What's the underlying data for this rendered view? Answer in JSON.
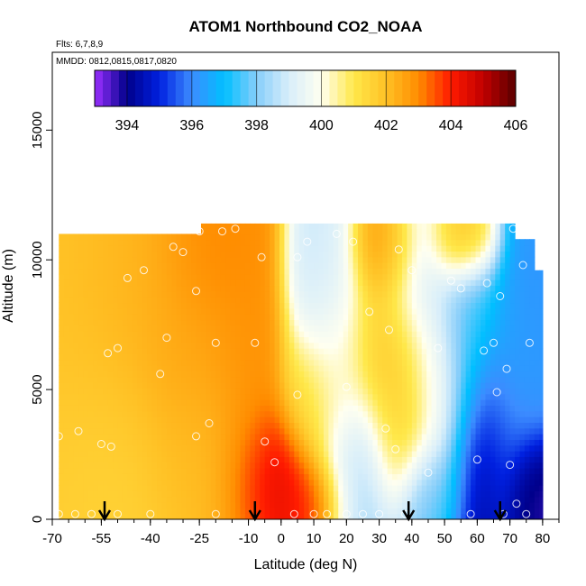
{
  "chart_data": {
    "type": "heatmap",
    "title": "ATOM1 Northbound CO2_NOAA",
    "subtitle_flights": "Flts: 6,7,8,9",
    "subtitle_dates": "MMDD: 0812,0815,0817,0820",
    "xlabel": "Latitude (deg N)",
    "ylabel": "Altitude (m)",
    "xlim": [
      -70,
      85
    ],
    "ylim": [
      0,
      18000
    ],
    "x_ticks": [
      {
        "value": -70,
        "label": "-70"
      },
      {
        "value": -55,
        "label": "-55"
      },
      {
        "value": -40,
        "label": "-40"
      },
      {
        "value": -25,
        "label": "-25"
      },
      {
        "value": -10,
        "label": "-10"
      },
      {
        "value": 0,
        "label": "0"
      },
      {
        "value": 10,
        "label": "10"
      },
      {
        "value": 20,
        "label": "20"
      },
      {
        "value": 30,
        "label": "30"
      },
      {
        "value": 40,
        "label": "40"
      },
      {
        "value": 50,
        "label": "50"
      },
      {
        "value": 60,
        "label": "60"
      },
      {
        "value": 70,
        "label": "70"
      },
      {
        "value": 80,
        "label": "80"
      }
    ],
    "y_ticks": [
      {
        "value": 0,
        "label": "0"
      },
      {
        "value": 5000,
        "label": "5000"
      },
      {
        "value": 10000,
        "label": "10000"
      },
      {
        "value": 15000,
        "label": "15000"
      }
    ],
    "colorbar": {
      "range": [
        393,
        406
      ],
      "ticks": [
        {
          "value": 394,
          "label": "394"
        },
        {
          "value": 396,
          "label": "396"
        },
        {
          "value": 398,
          "label": "398"
        },
        {
          "value": 400,
          "label": "400"
        },
        {
          "value": 402,
          "label": "402"
        },
        {
          "value": 404,
          "label": "404"
        },
        {
          "value": 406,
          "label": "406"
        }
      ],
      "color_stops": [
        {
          "value": 393,
          "color": "#9b30ff"
        },
        {
          "value": 394,
          "color": "#00008b"
        },
        {
          "value": 395,
          "color": "#0020e0"
        },
        {
          "value": 396,
          "color": "#3c8cff"
        },
        {
          "value": 397,
          "color": "#00bfff"
        },
        {
          "value": 398,
          "color": "#87cefa"
        },
        {
          "value": 399,
          "color": "#d8eefa"
        },
        {
          "value": 400,
          "color": "#fffff0"
        },
        {
          "value": 401,
          "color": "#ffe84a"
        },
        {
          "value": 402,
          "color": "#ffc125"
        },
        {
          "value": 403,
          "color": "#ff8c00"
        },
        {
          "value": 404,
          "color": "#ff1a00"
        },
        {
          "value": 405,
          "color": "#c00000"
        },
        {
          "value": 406,
          "color": "#5a0000"
        }
      ]
    },
    "region": {
      "lat_range": [
        -68,
        80
      ],
      "alt_top_segments": [
        {
          "lat_from": -68,
          "lat_to": -25,
          "alt_top": 11000
        },
        {
          "lat_from": -25,
          "lat_to": 72,
          "alt_top": 11400
        },
        {
          "lat_from": 72,
          "lat_to": 78,
          "alt_top": 10800
        },
        {
          "lat_from": 78,
          "lat_to": 80,
          "alt_top": 9600
        }
      ]
    },
    "field_anchors": [
      {
        "lat": -60,
        "alt": 5000,
        "value": 401.9,
        "sigma_lat": 14,
        "sigma_alt": 5000
      },
      {
        "lat": -55,
        "alt": 1500,
        "value": 401.4,
        "sigma_lat": 12,
        "sigma_alt": 2500
      },
      {
        "lat": -45,
        "alt": 8500,
        "value": 402.3,
        "sigma_lat": 12,
        "sigma_alt": 3000
      },
      {
        "lat": -28,
        "alt": 7500,
        "value": 402.6,
        "sigma_lat": 10,
        "sigma_alt": 3500
      },
      {
        "lat": -22,
        "alt": 10200,
        "value": 403.2,
        "sigma_lat": 8,
        "sigma_alt": 1500
      },
      {
        "lat": -25,
        "alt": 2200,
        "value": 402.0,
        "sigma_lat": 10,
        "sigma_alt": 2000
      },
      {
        "lat": -10,
        "alt": 6000,
        "value": 402.9,
        "sigma_lat": 7,
        "sigma_alt": 4000
      },
      {
        "lat": -2,
        "alt": 1700,
        "value": 404.8,
        "sigma_lat": 8,
        "sigma_alt": 1500
      },
      {
        "lat": 8,
        "alt": 700,
        "value": 404.0,
        "sigma_lat": 6,
        "sigma_alt": 1000
      },
      {
        "lat": 8,
        "alt": 4500,
        "value": 401.4,
        "sigma_lat": 5,
        "sigma_alt": 1500
      },
      {
        "lat": 12,
        "alt": 9500,
        "value": 398.6,
        "sigma_lat": 6,
        "sigma_alt": 2000
      },
      {
        "lat": 16,
        "alt": 6000,
        "value": 400.2,
        "sigma_lat": 7,
        "sigma_alt": 3000
      },
      {
        "lat": 24,
        "alt": 1600,
        "value": 398.4,
        "sigma_lat": 7,
        "sigma_alt": 1800
      },
      {
        "lat": 32,
        "alt": 10500,
        "value": 402.8,
        "sigma_lat": 6,
        "sigma_alt": 1200
      },
      {
        "lat": 33,
        "alt": 6500,
        "value": 401.8,
        "sigma_lat": 7,
        "sigma_alt": 2000
      },
      {
        "lat": 36,
        "alt": 3000,
        "value": 401.6,
        "sigma_lat": 5,
        "sigma_alt": 1500
      },
      {
        "lat": 44,
        "alt": 9500,
        "value": 398.9,
        "sigma_lat": 7,
        "sigma_alt": 2000
      },
      {
        "lat": 45,
        "alt": 1000,
        "value": 397.6,
        "sigma_lat": 6,
        "sigma_alt": 1200
      },
      {
        "lat": 48,
        "alt": 4500,
        "value": 400.2,
        "sigma_lat": 6,
        "sigma_alt": 2000
      },
      {
        "lat": 55,
        "alt": 10800,
        "value": 403.3,
        "sigma_lat": 6,
        "sigma_alt": 1000
      },
      {
        "lat": 58,
        "alt": 7500,
        "value": 397.6,
        "sigma_lat": 6,
        "sigma_alt": 2500
      },
      {
        "lat": 62,
        "alt": 2500,
        "value": 394.3,
        "sigma_lat": 7,
        "sigma_alt": 2500
      },
      {
        "lat": 70,
        "alt": 5500,
        "value": 396.5,
        "sigma_lat": 5,
        "sigma_alt": 3000
      },
      {
        "lat": 75,
        "alt": 8500,
        "value": 396.2,
        "sigma_lat": 4,
        "sigma_alt": 2500
      },
      {
        "lat": 75,
        "alt": 1000,
        "value": 393.6,
        "sigma_lat": 4,
        "sigma_alt": 1200
      }
    ],
    "sample_points": [
      [
        -68,
        200
      ],
      [
        -68,
        3200
      ],
      [
        -63,
        200
      ],
      [
        -62,
        3400
      ],
      [
        -58,
        200
      ],
      [
        -55,
        2900
      ],
      [
        -52,
        2800
      ],
      [
        -50,
        200
      ],
      [
        -53,
        6400
      ],
      [
        -50,
        6600
      ],
      [
        -47,
        9300
      ],
      [
        -42,
        9600
      ],
      [
        -40,
        200
      ],
      [
        -37,
        5600
      ],
      [
        -35,
        7000
      ],
      [
        -33,
        10500
      ],
      [
        -30,
        10300
      ],
      [
        -26,
        8800
      ],
      [
        -22,
        3700
      ],
      [
        -20,
        200
      ],
      [
        -20,
        6800
      ],
      [
        -26,
        3200
      ],
      [
        -25,
        11100
      ],
      [
        -18,
        11100
      ],
      [
        -14,
        11200
      ],
      [
        -8,
        6800
      ],
      [
        -6,
        10100
      ],
      [
        -5,
        3000
      ],
      [
        -2,
        2200
      ],
      [
        4,
        200
      ],
      [
        5,
        4800
      ],
      [
        5,
        10100
      ],
      [
        8,
        10700
      ],
      [
        10,
        200
      ],
      [
        14,
        200
      ],
      [
        17,
        11000
      ],
      [
        20,
        200
      ],
      [
        20,
        5100
      ],
      [
        22,
        10700
      ],
      [
        25,
        200
      ],
      [
        27,
        8000
      ],
      [
        30,
        200
      ],
      [
        32,
        3500
      ],
      [
        33,
        7300
      ],
      [
        35,
        2700
      ],
      [
        36,
        10400
      ],
      [
        38,
        200
      ],
      [
        40,
        9600
      ],
      [
        45,
        1800
      ],
      [
        48,
        6600
      ],
      [
        52,
        9200
      ],
      [
        55,
        8900
      ],
      [
        58,
        200
      ],
      [
        60,
        2300
      ],
      [
        62,
        6500
      ],
      [
        63,
        9100
      ],
      [
        65,
        6800
      ],
      [
        66,
        4900
      ],
      [
        67,
        8600
      ],
      [
        68,
        200
      ],
      [
        69,
        5800
      ],
      [
        70,
        2100
      ],
      [
        71,
        11200
      ],
      [
        72,
        600
      ],
      [
        74,
        9800
      ],
      [
        75,
        200
      ],
      [
        76,
        6800
      ]
    ],
    "flight_markers_lat": [
      -54,
      -8,
      39,
      67
    ]
  }
}
